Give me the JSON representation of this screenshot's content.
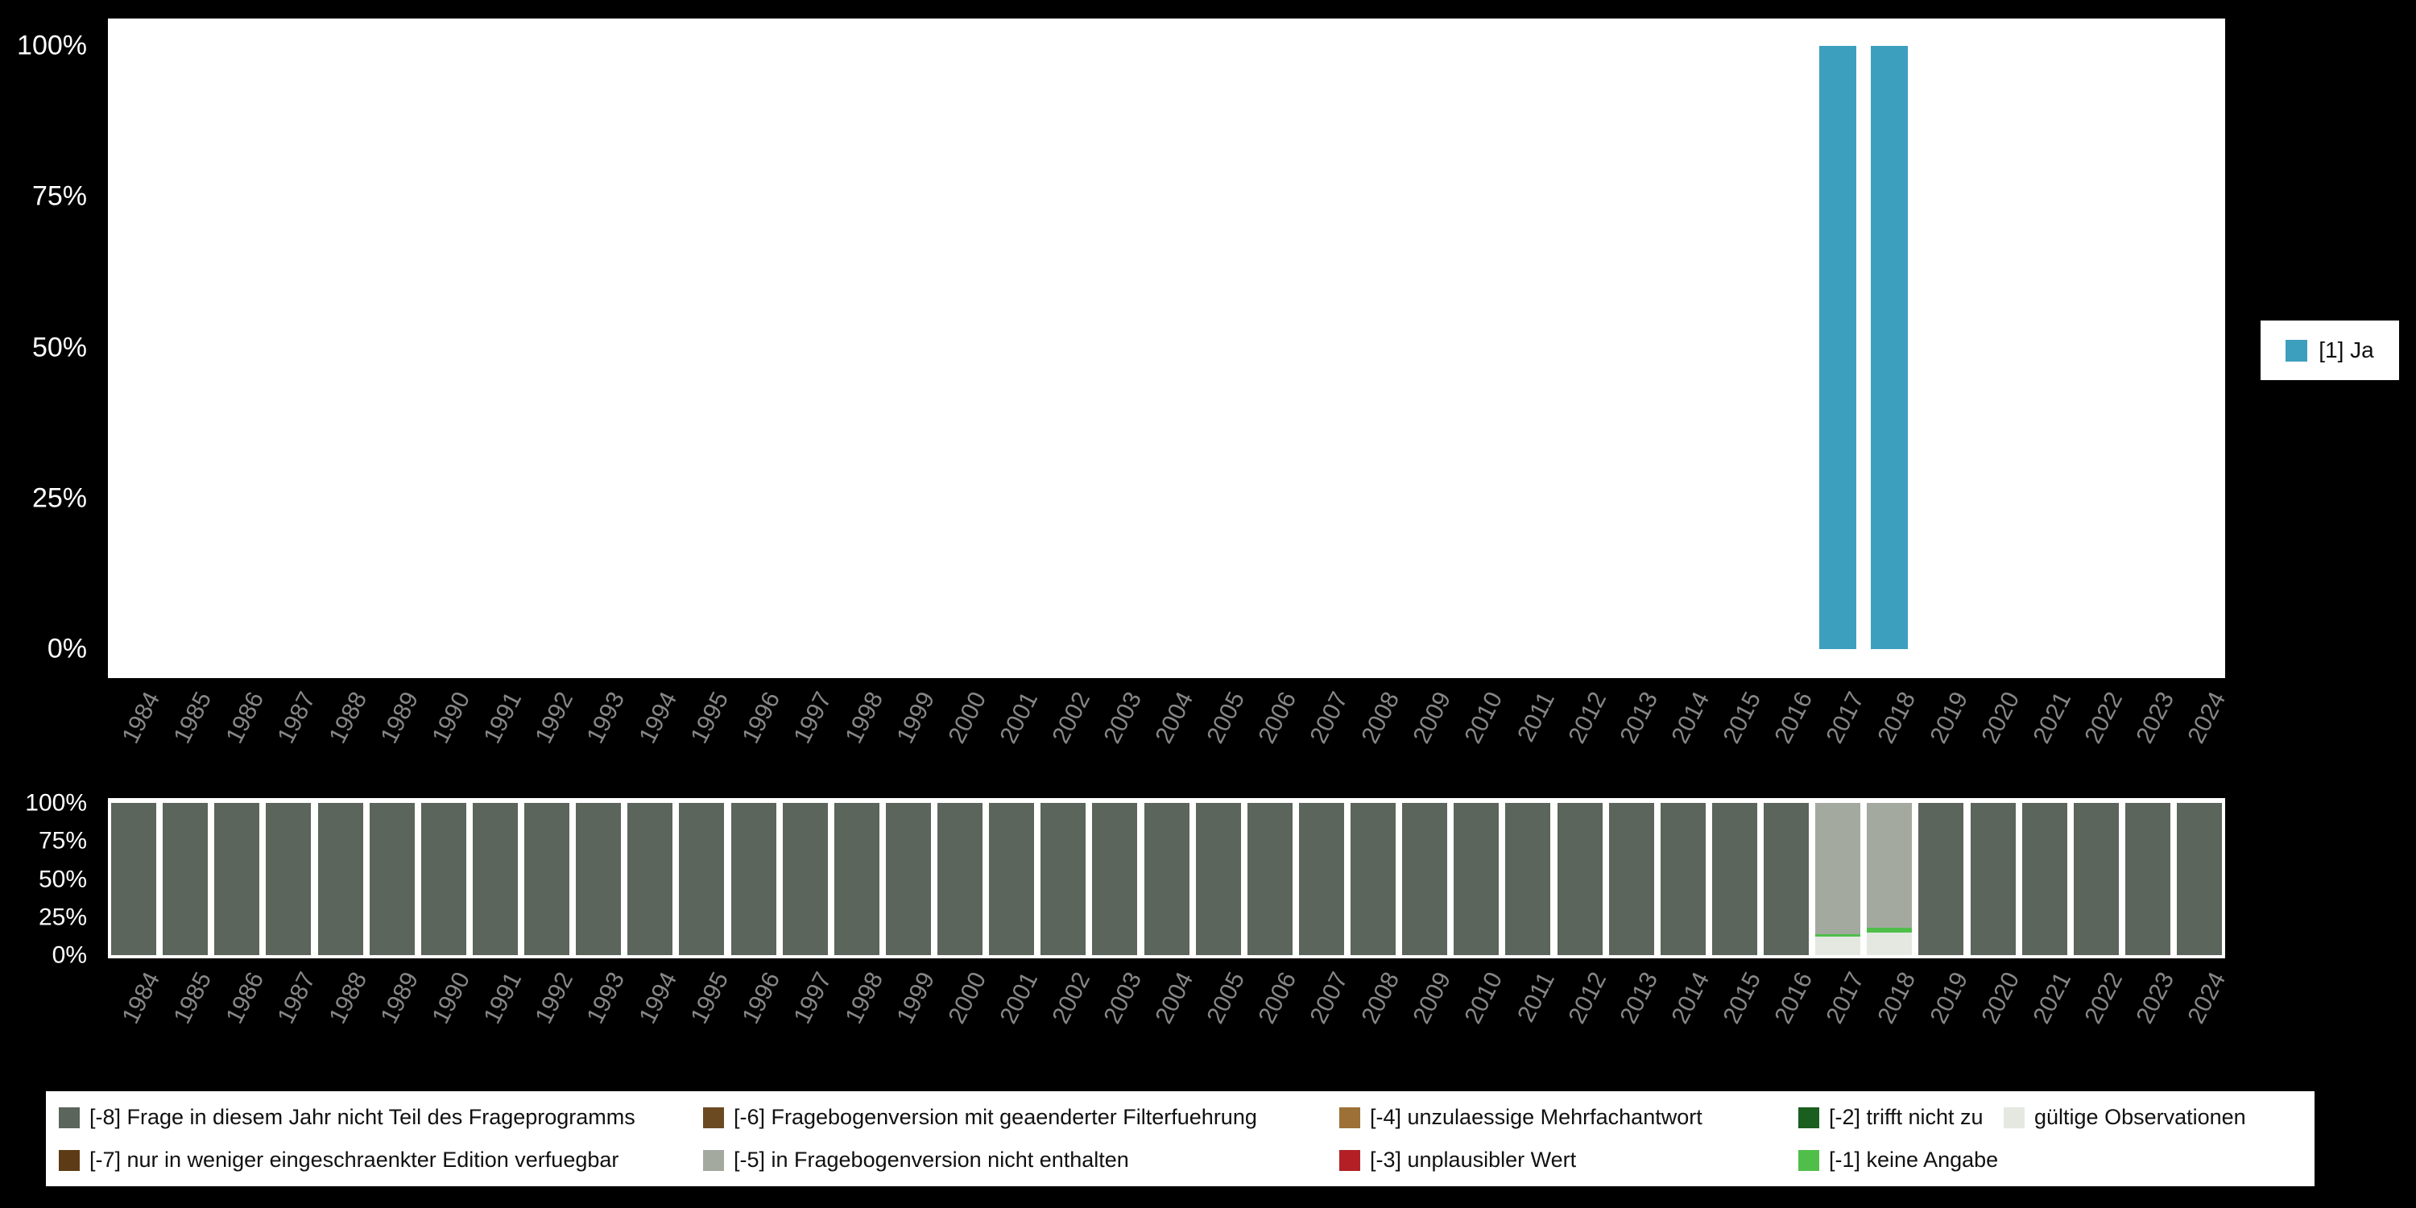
{
  "colors": {
    "background": "#000000",
    "panel": "#ffffff",
    "x_axis_text": "#878787",
    "y_axis_text": "#ffffff",
    "legend_text": "#111111",
    "ja": "#3d9fbe",
    "m8": "#5b655b",
    "m7": "#5e3b17",
    "m6": "#6b4a22",
    "m5": "#a3a99f",
    "m4": "#9c7036",
    "m3": "#b22025",
    "m2": "#1a5e20",
    "m1": "#4fbf4a",
    "valid": "#e4e8e1"
  },
  "chart_data": [
    {
      "id": "frequencies",
      "type": "bar",
      "title": "",
      "xlabel": "",
      "ylabel": "",
      "unit": "percent",
      "ylim": [
        0,
        100
      ],
      "grid": false,
      "yticks": [
        "100%",
        "75%",
        "50%",
        "25%",
        "0%"
      ],
      "categories": [
        "1984",
        "1985",
        "1986",
        "1987",
        "1988",
        "1989",
        "1990",
        "1991",
        "1992",
        "1993",
        "1994",
        "1995",
        "1996",
        "1997",
        "1998",
        "1999",
        "2000",
        "2001",
        "2002",
        "2003",
        "2004",
        "2005",
        "2006",
        "2007",
        "2008",
        "2009",
        "2010",
        "2011",
        "2012",
        "2013",
        "2014",
        "2015",
        "2016",
        "2017",
        "2018",
        "2019",
        "2020",
        "2021",
        "2022",
        "2023",
        "2024"
      ],
      "series": [
        {
          "name": "[1] Ja",
          "color_key": "ja"
        }
      ],
      "bars": {
        "2017": [
          [
            "ja",
            100
          ]
        ],
        "2018": [
          [
            "ja",
            100
          ]
        ]
      },
      "legend_position": "right",
      "legend_label": "[1] Ja"
    },
    {
      "id": "missings",
      "type": "stacked-bar",
      "title": "",
      "xlabel": "",
      "ylabel": "",
      "unit": "percent",
      "ylim": [
        0,
        100
      ],
      "grid": false,
      "yticks": [
        "100%",
        "75%",
        "50%",
        "25%",
        "0%"
      ],
      "categories": [
        "1984",
        "1985",
        "1986",
        "1987",
        "1988",
        "1989",
        "1990",
        "1991",
        "1992",
        "1993",
        "1994",
        "1995",
        "1996",
        "1997",
        "1998",
        "1999",
        "2000",
        "2001",
        "2002",
        "2003",
        "2004",
        "2005",
        "2006",
        "2007",
        "2008",
        "2009",
        "2010",
        "2011",
        "2012",
        "2013",
        "2014",
        "2015",
        "2016",
        "2017",
        "2018",
        "2019",
        "2020",
        "2021",
        "2022",
        "2023",
        "2024"
      ],
      "bars_default": [
        [
          "m8",
          100
        ]
      ],
      "bars": {
        "2017": [
          [
            "m5",
            86
          ],
          [
            "m1",
            2
          ],
          [
            "valid",
            12
          ]
        ],
        "2018": [
          [
            "m5",
            82
          ],
          [
            "m1",
            3
          ],
          [
            "valid",
            15
          ]
        ]
      },
      "legend_position": "bottom",
      "legend_rows": [
        [
          {
            "color_key": "m8",
            "label": "[-8] Frage in diesem Jahr nicht Teil des Frageprogramms"
          },
          {
            "color_key": "m6",
            "label": "[-6] Fragebogenversion mit geaenderter Filterfuehrung"
          },
          {
            "color_key": "m4",
            "label": "[-4] unzulaessige Mehrfachantwort"
          },
          {
            "color_key": "m2",
            "label": "[-2] trifft nicht zu"
          },
          {
            "color_key": "valid",
            "label": "gültige Observationen"
          }
        ],
        [
          {
            "color_key": "m7",
            "label": "[-7] nur in weniger eingeschraenkter Edition verfuegbar"
          },
          {
            "color_key": "m5",
            "label": "[-5] in Fragebogenversion nicht enthalten"
          },
          {
            "color_key": "m3",
            "label": "[-3] unplausibler Wert"
          },
          {
            "color_key": "m1",
            "label": "[-1] keine Angabe"
          }
        ]
      ]
    }
  ]
}
